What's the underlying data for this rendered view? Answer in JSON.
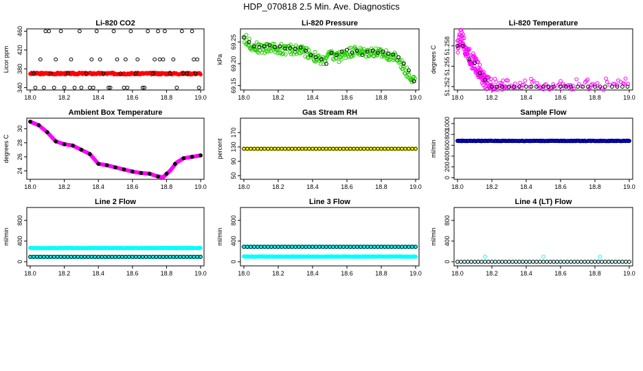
{
  "figure_title": "HDP_070818  2.5 Min. Ave. Diagnostics",
  "colors": {
    "black": "#000000",
    "red": "#ff0000",
    "green": "#22cc00",
    "magenta": "#ff00ff",
    "yellow": "#ffff00",
    "blue": "#0000ff",
    "cyan": "#00ffff"
  },
  "chart_data": [
    {
      "type": "scatter",
      "title": "Li-820 CO2",
      "xlabel": "",
      "ylabel": "Licor ppm",
      "xlim": [
        17.98,
        19.02
      ],
      "ylim": [
        335,
        465
      ],
      "xticks": [
        18.0,
        18.2,
        18.4,
        18.6,
        18.8,
        19.0
      ],
      "xtick_labels": [
        "18.0",
        "18.2",
        "18.4",
        "18.6",
        "18.8",
        "19.0"
      ],
      "yticks": [
        340,
        380,
        420,
        460
      ],
      "ytick_labels": [
        "340",
        "380",
        "420",
        "460"
      ],
      "series": [
        {
          "color": "red",
          "filled": true,
          "kind": "dense",
          "x_range": [
            18.0,
            19.0
          ],
          "center": 370,
          "spread": 2
        },
        {
          "color": "black",
          "filled": false,
          "kind": "scatter",
          "x": [
            18.02,
            18.06,
            18.09,
            18.12,
            18.15,
            18.18,
            18.22,
            18.26,
            18.29,
            18.33,
            18.36,
            18.39,
            18.43,
            18.46,
            18.49,
            18.53,
            18.56,
            18.59,
            18.62,
            18.66,
            18.69,
            18.72,
            18.76,
            18.79,
            18.82,
            18.86,
            18.89,
            18.92,
            18.96,
            18.99,
            18.03,
            18.08,
            18.14,
            18.2,
            18.24,
            18.3,
            18.37,
            18.41,
            18.47,
            18.51,
            18.57,
            18.63,
            18.67,
            18.73,
            18.78,
            18.84,
            18.9,
            18.95,
            18.98,
            18.11,
            18.35,
            18.55,
            18.75,
            18.97
          ],
          "y": [
            370,
            400,
            460,
            370,
            400,
            460,
            370,
            340,
            460,
            370,
            400,
            460,
            370,
            340,
            460,
            370,
            400,
            460,
            370,
            340,
            460,
            370,
            400,
            460,
            370,
            340,
            460,
            370,
            400,
            340,
            340,
            340,
            340,
            340,
            400,
            340,
            340,
            400,
            340,
            400,
            340,
            400,
            340,
            400,
            400,
            400,
            370,
            460,
            400,
            460,
            340,
            340,
            460,
            370
          ]
        }
      ]
    },
    {
      "type": "scatter",
      "title": "Li-820 Pressure",
      "xlabel": "",
      "ylabel": "kPa",
      "xlim": [
        17.98,
        19.02
      ],
      "ylim": [
        69.14,
        69.28
      ],
      "xticks": [
        18.0,
        18.2,
        18.4,
        18.6,
        18.8,
        19.0
      ],
      "xtick_labels": [
        "18.0",
        "18.2",
        "18.4",
        "18.6",
        "18.8",
        "19.0"
      ],
      "yticks": [
        69.15,
        69.2,
        69.25
      ],
      "ytick_labels": [
        "69.15",
        "69.20",
        "69.25"
      ],
      "series": [
        {
          "color": "green",
          "filled": false,
          "kind": "band",
          "x": [
            18.0,
            18.05,
            18.1,
            18.15,
            18.2,
            18.25,
            18.3,
            18.35,
            18.4,
            18.45,
            18.5,
            18.55,
            18.6,
            18.65,
            18.7,
            18.75,
            18.8,
            18.85,
            18.9,
            18.95,
            19.0
          ],
          "y": [
            69.26,
            69.24,
            69.235,
            69.237,
            69.235,
            69.232,
            69.233,
            69.23,
            69.22,
            69.205,
            69.22,
            69.215,
            69.225,
            69.23,
            69.225,
            69.228,
            69.222,
            69.22,
            69.21,
            69.18,
            69.16
          ],
          "spread": 0.012
        },
        {
          "color": "black",
          "filled": false,
          "kind": "scatter",
          "x": [
            18.0,
            18.03,
            18.06,
            18.09,
            18.12,
            18.15,
            18.18,
            18.21,
            18.24,
            18.27,
            18.3,
            18.33,
            18.36,
            18.39,
            18.42,
            18.45,
            18.48,
            18.51,
            18.54,
            18.57,
            18.6,
            18.63,
            18.66,
            18.69,
            18.72,
            18.75,
            18.78,
            18.81,
            18.84,
            18.87,
            18.9,
            18.93,
            18.96,
            18.99
          ],
          "y": [
            69.26,
            69.25,
            69.24,
            69.238,
            69.24,
            69.243,
            69.238,
            69.24,
            69.235,
            69.236,
            69.234,
            69.237,
            69.23,
            69.22,
            69.215,
            69.21,
            69.2,
            69.225,
            69.22,
            69.228,
            69.232,
            69.226,
            69.23,
            69.22,
            69.228,
            69.23,
            69.225,
            69.228,
            69.223,
            69.221,
            69.215,
            69.2,
            69.185,
            69.16
          ]
        }
      ]
    },
    {
      "type": "scatter",
      "title": "Li-820 Temperature",
      "xlabel": "",
      "ylabel": "degrees C",
      "xlim": [
        17.98,
        19.02
      ],
      "ylim": [
        51.2515,
        51.2605
      ],
      "xticks": [
        18.0,
        18.2,
        18.4,
        18.6,
        18.8,
        19.0
      ],
      "xtick_labels": [
        "18.0",
        "18.2",
        "18.4",
        "18.6",
        "18.8",
        "19.0"
      ],
      "yticks": [
        51.252,
        51.255,
        51.258
      ],
      "ytick_labels": [
        "51.252",
        "51.255",
        "51.258"
      ],
      "series": [
        {
          "color": "magenta",
          "filled": false,
          "kind": "band",
          "x": [
            18.0,
            18.02,
            18.04,
            18.06,
            18.08,
            18.1,
            18.12,
            18.14,
            18.16,
            18.18,
            18.2,
            18.25,
            18.3,
            18.4,
            18.5,
            18.6,
            18.7,
            18.8,
            18.9,
            19.0
          ],
          "y": [
            51.258,
            51.2595,
            51.258,
            51.257,
            51.256,
            51.2555,
            51.2545,
            51.2535,
            51.253,
            51.2522,
            51.252,
            51.252,
            51.252,
            51.252,
            51.252,
            51.252,
            51.252,
            51.252,
            51.252,
            51.252
          ],
          "spread": 0.0012
        },
        {
          "color": "black",
          "filled": false,
          "kind": "scatter",
          "x": [
            18.0,
            18.03,
            18.07,
            18.1,
            18.13,
            18.16,
            18.2,
            18.23,
            18.26,
            18.3,
            18.33,
            18.36,
            18.4,
            18.43,
            18.46,
            18.5,
            18.53,
            18.56,
            18.6,
            18.63,
            18.66,
            18.7,
            18.73,
            18.76,
            18.8,
            18.83,
            18.86,
            18.9,
            18.93,
            18.96,
            18.99
          ],
          "y": [
            51.258,
            51.258,
            51.256,
            51.2555,
            51.254,
            51.253,
            51.252,
            51.252,
            51.252,
            51.252,
            51.252,
            51.252,
            51.252,
            51.252,
            51.252,
            51.252,
            51.252,
            51.252,
            51.252,
            51.252,
            51.252,
            51.252,
            51.252,
            51.252,
            51.252,
            51.252,
            51.252,
            51.252,
            51.252,
            51.252,
            51.252
          ]
        }
      ]
    },
    {
      "type": "scatter",
      "title": "Ambient Box Temperature",
      "xlabel": "",
      "ylabel": "degrees C",
      "xlim": [
        17.98,
        19.02
      ],
      "ylim": [
        22.8,
        31.5
      ],
      "xticks": [
        18.0,
        18.2,
        18.4,
        18.6,
        18.8,
        19.0
      ],
      "xtick_labels": [
        "18.0",
        "18.2",
        "18.4",
        "18.6",
        "18.8",
        "19.0"
      ],
      "yticks": [
        24,
        26,
        28,
        30
      ],
      "ytick_labels": [
        "24",
        "26",
        "28",
        "30"
      ],
      "series": [
        {
          "color": "magenta",
          "filled": true,
          "kind": "line_pts",
          "x": [
            18.0,
            18.05,
            18.1,
            18.15,
            18.2,
            18.25,
            18.3,
            18.35,
            18.4,
            18.45,
            18.5,
            18.55,
            18.6,
            18.65,
            18.7,
            18.75,
            18.78,
            18.82,
            18.86,
            18.9,
            18.95,
            19.0
          ],
          "y": [
            31.0,
            30.5,
            29.5,
            28.2,
            27.8,
            27.6,
            27.0,
            26.4,
            25.0,
            24.8,
            24.5,
            24.2,
            23.9,
            23.7,
            23.6,
            23.2,
            23.1,
            24.0,
            25.2,
            25.8,
            26.0,
            26.2
          ]
        },
        {
          "color": "black",
          "filled": true,
          "kind": "scatter",
          "x": [
            18.0,
            18.05,
            18.1,
            18.15,
            18.2,
            18.25,
            18.3,
            18.35,
            18.4,
            18.45,
            18.5,
            18.55,
            18.6,
            18.65,
            18.7,
            18.75,
            18.8,
            18.85,
            18.9,
            18.95,
            19.0
          ],
          "y": [
            31.0,
            30.5,
            29.5,
            28.2,
            27.8,
            27.6,
            27.0,
            26.4,
            25.0,
            24.8,
            24.5,
            24.2,
            23.9,
            23.7,
            23.6,
            23.2,
            23.6,
            25.0,
            25.8,
            26.0,
            26.2
          ]
        }
      ]
    },
    {
      "type": "scatter",
      "title": "Gas Stream RH",
      "xlabel": "",
      "ylabel": "percent",
      "xlim": [
        17.98,
        19.02
      ],
      "ylim": [
        40,
        210
      ],
      "xticks": [
        18.0,
        18.2,
        18.4,
        18.6,
        18.8,
        19.0
      ],
      "xtick_labels": [
        "18.0",
        "18.2",
        "18.4",
        "18.6",
        "18.8",
        "19.0"
      ],
      "yticks": [
        50,
        90,
        130,
        170
      ],
      "ytick_labels": [
        "50",
        "90",
        "130",
        "170"
      ],
      "series": [
        {
          "color": "yellow",
          "filled": true,
          "kind": "dense",
          "x_range": [
            18.0,
            19.0
          ],
          "center": 125,
          "spread": 0
        },
        {
          "color": "black",
          "filled": false,
          "kind": "dense",
          "x_range": [
            18.0,
            19.0
          ],
          "center": 125,
          "spread": 0,
          "step": 0.02
        }
      ]
    },
    {
      "type": "scatter",
      "title": "Sample Flow",
      "xlabel": "",
      "ylabel": "ml/min",
      "xlim": [
        17.98,
        19.02
      ],
      "ylim": [
        -30,
        1100
      ],
      "xticks": [
        18.0,
        18.2,
        18.4,
        18.6,
        18.8,
        19.0
      ],
      "xtick_labels": [
        "18.0",
        "18.2",
        "18.4",
        "18.6",
        "18.8",
        "19.0"
      ],
      "yticks": [
        0,
        200,
        400,
        600,
        800,
        1000
      ],
      "ytick_labels": [
        "0",
        "200",
        "400",
        "600",
        "800",
        "1000"
      ],
      "series": [
        {
          "color": "blue",
          "filled": true,
          "kind": "dense",
          "x_range": [
            18.0,
            19.0
          ],
          "center": 680,
          "spread": 6
        },
        {
          "color": "black",
          "filled": false,
          "kind": "dense",
          "x_range": [
            18.0,
            19.0
          ],
          "center": 680,
          "spread": 3,
          "step": 0.02
        }
      ]
    },
    {
      "type": "scatter",
      "title": "Line 2 Flow",
      "xlabel": "",
      "ylabel": "ml/min",
      "xlim": [
        17.98,
        19.02
      ],
      "ylim": [
        -80,
        1050
      ],
      "xticks": [
        18.0,
        18.2,
        18.4,
        18.6,
        18.8,
        19.0
      ],
      "xtick_labels": [
        "18.0",
        "18.2",
        "18.4",
        "18.6",
        "18.8",
        "19.0"
      ],
      "yticks": [
        0,
        400,
        800
      ],
      "ytick_labels": [
        "0",
        "400",
        "800"
      ],
      "series": [
        {
          "color": "cyan",
          "filled": true,
          "kind": "dense",
          "x_range": [
            18.0,
            19.0
          ],
          "center": 265,
          "spread": 4
        },
        {
          "color": "cyan",
          "filled": true,
          "kind": "dense",
          "x_range": [
            18.0,
            19.0
          ],
          "center": 95,
          "spread": 2
        },
        {
          "color": "black",
          "filled": false,
          "kind": "dense",
          "x_range": [
            18.0,
            19.0
          ],
          "center": 95,
          "spread": 0,
          "step": 0.02
        }
      ]
    },
    {
      "type": "scatter",
      "title": "Line 3 Flow",
      "xlabel": "",
      "ylabel": "ml/min",
      "xlim": [
        17.98,
        19.02
      ],
      "ylim": [
        -80,
        1050
      ],
      "xticks": [
        18.0,
        18.2,
        18.4,
        18.6,
        18.8,
        19.0
      ],
      "xtick_labels": [
        "18.0",
        "18.2",
        "18.4",
        "18.6",
        "18.8",
        "19.0"
      ],
      "yticks": [
        0,
        400,
        800
      ],
      "ytick_labels": [
        "0",
        "400",
        "800"
      ],
      "series": [
        {
          "color": "cyan",
          "filled": true,
          "kind": "dense",
          "x_range": [
            18.0,
            19.0
          ],
          "center": 100,
          "spread": 4
        },
        {
          "color": "cyan",
          "filled": true,
          "kind": "dense",
          "x_range": [
            18.0,
            19.0
          ],
          "center": 290,
          "spread": 2
        },
        {
          "color": "black",
          "filled": false,
          "kind": "dense",
          "x_range": [
            18.0,
            19.0
          ],
          "center": 290,
          "spread": 0,
          "step": 0.02
        }
      ]
    },
    {
      "type": "scatter",
      "title": "Line 4 (LT) Flow",
      "xlabel": "",
      "ylabel": "ml/min",
      "xlim": [
        17.98,
        19.02
      ],
      "ylim": [
        -80,
        1050
      ],
      "xticks": [
        18.0,
        18.2,
        18.4,
        18.6,
        18.8,
        19.0
      ],
      "xtick_labels": [
        "18.0",
        "18.2",
        "18.4",
        "18.6",
        "18.8",
        "19.0"
      ],
      "yticks": [
        0,
        400,
        800
      ],
      "ytick_labels": [
        "0",
        "400",
        "800"
      ],
      "series": [
        {
          "color": "cyan",
          "filled": false,
          "kind": "dense",
          "x_range": [
            18.0,
            19.0
          ],
          "center": 0,
          "spread": 0,
          "step": 0.02
        },
        {
          "color": "cyan",
          "filled": false,
          "kind": "scatter",
          "x": [
            18.16,
            18.5,
            18.83
          ],
          "y": [
            100,
            100,
            100
          ]
        },
        {
          "color": "black",
          "filled": false,
          "kind": "dense",
          "x_range": [
            18.0,
            19.0
          ],
          "center": 0,
          "spread": 0,
          "step": 0.02
        }
      ]
    }
  ]
}
